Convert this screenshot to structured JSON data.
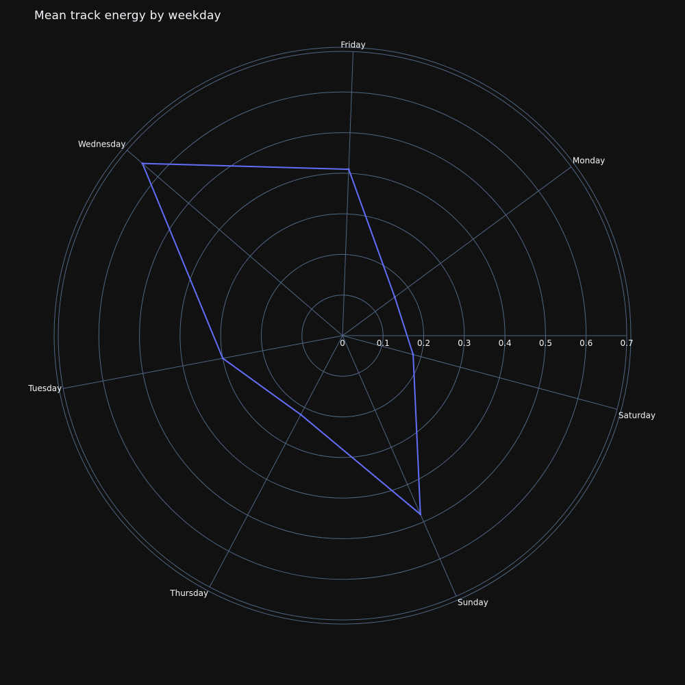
{
  "chart_data": {
    "type": "radar",
    "title": "Mean track energy by weekday",
    "categories": [
      "Saturday",
      "Monday",
      "Friday",
      "Wednesday",
      "Tuesday",
      "Thursday",
      "Sunday"
    ],
    "values": [
      0.18,
      0.16,
      0.41,
      0.65,
      0.3,
      0.22,
      0.48
    ],
    "radial_range": [
      0,
      0.7
    ],
    "radial_ticks": [
      "0",
      "0.1",
      "0.2",
      "0.3",
      "0.4",
      "0.5",
      "0.6",
      "0.7"
    ],
    "grid": true,
    "colors": {
      "background": "#111111",
      "grid": "#506784",
      "series": "#636efa",
      "text": "#f2f5fa"
    }
  }
}
